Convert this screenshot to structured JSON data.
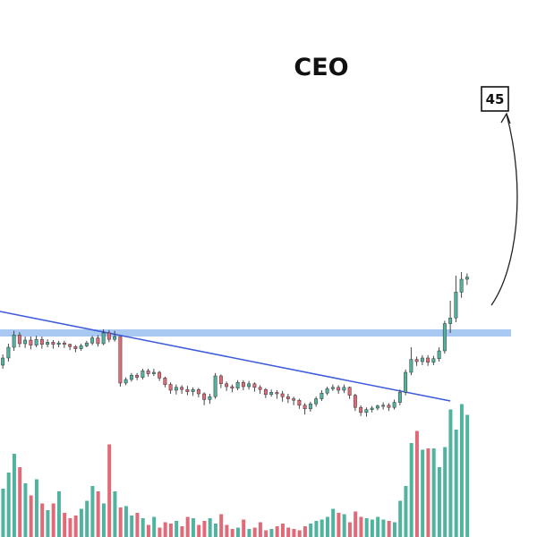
{
  "chart_data": {
    "type": "candlestick",
    "title": "CEO",
    "target_label": "45",
    "colors": {
      "up": "#4fb3a0",
      "down": "#e16a79",
      "trendline": "#3b5bdb",
      "resistance": "#a9c8f2",
      "text": "#111111"
    },
    "candles": [
      [
        14.0,
        15.0,
        13.5,
        15.5
      ],
      [
        15.0,
        16.5,
        14.5,
        17.0
      ],
      [
        16.5,
        18.2,
        16.0,
        18.8
      ],
      [
        18.2,
        17.0,
        16.5,
        18.6
      ],
      [
        17.0,
        17.5,
        16.4,
        18.0
      ],
      [
        17.5,
        16.8,
        16.2,
        18.0
      ],
      [
        16.8,
        17.6,
        16.5,
        18.1
      ],
      [
        17.6,
        16.9,
        16.3,
        18.0
      ],
      [
        16.9,
        17.2,
        16.5,
        17.6
      ],
      [
        17.2,
        16.9,
        16.3,
        17.5
      ],
      [
        16.9,
        17.1,
        16.5,
        17.4
      ],
      [
        17.1,
        16.9,
        16.4,
        17.4
      ],
      [
        16.9,
        16.6,
        16.1,
        17.0
      ],
      [
        16.6,
        16.3,
        15.8,
        16.8
      ],
      [
        16.3,
        16.7,
        16.0,
        17.0
      ],
      [
        16.7,
        17.1,
        16.5,
        17.4
      ],
      [
        17.1,
        17.8,
        16.8,
        18.1
      ],
      [
        17.8,
        17.0,
        16.6,
        18.2
      ],
      [
        17.0,
        18.5,
        16.8,
        19.0
      ],
      [
        18.5,
        17.6,
        17.2,
        18.9
      ],
      [
        17.6,
        18.0,
        17.3,
        18.8
      ],
      [
        18.0,
        11.5,
        11.0,
        18.0
      ],
      [
        11.5,
        12.0,
        11.2,
        12.3
      ],
      [
        12.0,
        12.6,
        11.7,
        12.9
      ],
      [
        12.6,
        12.3,
        11.9,
        12.9
      ],
      [
        12.3,
        13.2,
        12.0,
        13.5
      ],
      [
        13.2,
        12.8,
        12.4,
        13.5
      ],
      [
        12.8,
        13.0,
        12.5,
        13.5
      ],
      [
        13.0,
        12.2,
        11.8,
        13.2
      ],
      [
        12.2,
        11.3,
        10.9,
        12.4
      ],
      [
        11.3,
        10.5,
        10.0,
        11.6
      ],
      [
        10.5,
        10.9,
        9.9,
        11.3
      ],
      [
        10.9,
        10.6,
        10.0,
        11.2
      ],
      [
        10.6,
        10.3,
        9.8,
        11.1
      ],
      [
        10.3,
        10.6,
        9.7,
        10.9
      ],
      [
        10.6,
        10.0,
        9.5,
        10.8
      ],
      [
        10.0,
        9.2,
        8.4,
        10.2
      ],
      [
        9.2,
        9.6,
        8.6,
        10.0
      ],
      [
        9.6,
        12.5,
        9.3,
        12.9
      ],
      [
        12.5,
        11.4,
        10.8,
        12.7
      ],
      [
        11.4,
        11.0,
        10.4,
        11.7
      ],
      [
        11.0,
        10.8,
        10.2,
        11.3
      ],
      [
        10.8,
        11.6,
        10.5,
        11.9
      ],
      [
        11.6,
        11.0,
        10.5,
        11.9
      ],
      [
        11.0,
        11.4,
        10.6,
        11.8
      ],
      [
        11.4,
        10.9,
        10.3,
        11.6
      ],
      [
        10.9,
        10.6,
        10.0,
        11.2
      ],
      [
        10.6,
        9.9,
        9.4,
        10.8
      ],
      [
        9.9,
        10.2,
        9.6,
        10.6
      ],
      [
        10.2,
        10.0,
        9.3,
        10.5
      ],
      [
        10.0,
        9.6,
        8.9,
        10.4
      ],
      [
        9.6,
        9.3,
        8.7,
        10.0
      ],
      [
        9.3,
        9.1,
        8.4,
        9.6
      ],
      [
        9.1,
        8.4,
        7.9,
        9.3
      ],
      [
        8.4,
        7.9,
        7.1,
        8.7
      ],
      [
        7.9,
        8.6,
        7.5,
        8.9
      ],
      [
        8.6,
        9.3,
        8.2,
        9.6
      ],
      [
        9.3,
        10.1,
        9.0,
        10.5
      ],
      [
        10.1,
        10.7,
        9.8,
        11.0
      ],
      [
        10.7,
        10.9,
        10.4,
        11.3
      ],
      [
        10.9,
        10.5,
        10.0,
        11.2
      ],
      [
        10.5,
        10.9,
        10.1,
        11.3
      ],
      [
        10.9,
        9.8,
        9.3,
        11.0
      ],
      [
        9.8,
        8.1,
        7.6,
        10.0
      ],
      [
        8.1,
        7.4,
        6.9,
        8.4
      ],
      [
        7.4,
        7.8,
        6.8,
        8.1
      ],
      [
        7.8,
        8.0,
        7.4,
        8.3
      ],
      [
        8.0,
        8.3,
        7.7,
        8.5
      ],
      [
        8.3,
        8.4,
        7.8,
        8.8
      ],
      [
        8.4,
        8.1,
        7.6,
        8.7
      ],
      [
        8.1,
        8.8,
        7.8,
        9.2
      ],
      [
        8.8,
        10.2,
        8.4,
        10.6
      ],
      [
        10.2,
        13.0,
        9.8,
        13.4
      ],
      [
        13.0,
        14.8,
        12.6,
        16.5
      ],
      [
        14.8,
        14.5,
        13.9,
        15.2
      ],
      [
        14.5,
        15.0,
        14.0,
        15.4
      ],
      [
        15.0,
        14.4,
        13.9,
        15.4
      ],
      [
        14.4,
        14.9,
        14.0,
        15.3
      ],
      [
        14.9,
        16.0,
        14.5,
        16.5
      ],
      [
        16.0,
        19.8,
        15.6,
        20.2
      ],
      [
        19.8,
        20.6,
        18.5,
        23.0
      ],
      [
        20.6,
        24.2,
        20.0,
        26.5
      ],
      [
        24.2,
        26.0,
        23.4,
        27.0
      ],
      [
        26.0,
        26.3,
        25.2,
        26.8
      ]
    ],
    "volume": [
      3.6,
      4.8,
      6.2,
      5.2,
      4.0,
      3.1,
      4.3,
      2.5,
      2.0,
      2.5,
      3.4,
      1.8,
      1.4,
      1.6,
      2.1,
      2.7,
      3.8,
      3.4,
      2.5,
      6.9,
      3.4,
      2.2,
      2.3,
      1.6,
      1.8,
      1.4,
      0.9,
      1.5,
      0.7,
      1.1,
      1.0,
      1.2,
      0.8,
      1.5,
      1.4,
      0.9,
      1.2,
      1.4,
      1.0,
      1.7,
      0.9,
      0.6,
      0.7,
      1.3,
      0.6,
      0.7,
      1.1,
      0.5,
      0.6,
      0.8,
      1.0,
      0.7,
      0.6,
      0.5,
      0.8,
      1.0,
      1.2,
      1.3,
      1.5,
      2.1,
      1.8,
      1.7,
      1.1,
      1.9,
      1.5,
      1.4,
      1.3,
      1.5,
      1.3,
      1.2,
      1.1,
      2.7,
      3.8,
      7.0,
      7.9,
      6.5,
      6.6,
      6.6,
      5.2,
      6.7,
      9.5,
      8.0,
      9.9,
      9.1
    ],
    "volume_max": 10,
    "y_range": [
      5,
      50
    ],
    "resistance_level": 18.5,
    "trendline": {
      "from": [
        0,
        21.5
      ],
      "to": [
        80,
        9.0
      ]
    }
  }
}
